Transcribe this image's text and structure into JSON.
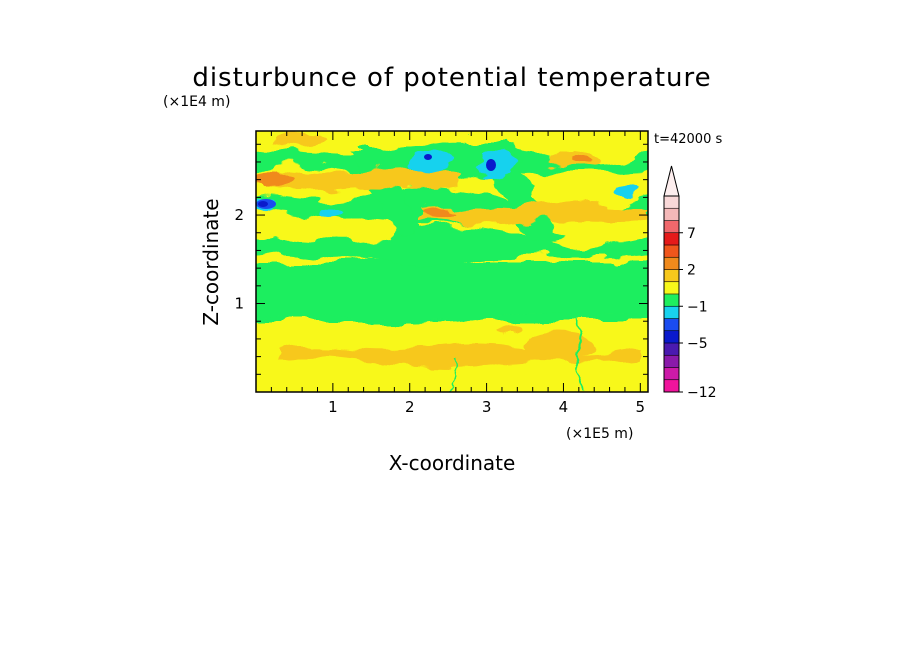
{
  "chart_data": {
    "type": "heatmap",
    "title": "disturbunce of potential temperature",
    "xlabel": "X-coordinate",
    "ylabel": "Z-coordinate",
    "x_unit": "(×1E5 m)",
    "y_unit": "(×1E4 m)",
    "time_label": "t=42000 s",
    "xlim": [
      0,
      5.1
    ],
    "ylim": [
      0,
      2.95
    ],
    "x_ticks": [
      "1",
      "2",
      "3",
      "4",
      "5"
    ],
    "x_tick_values": [
      1,
      2,
      3,
      4,
      5
    ],
    "y_ticks": [
      "1",
      "2"
    ],
    "y_tick_values": [
      1,
      2
    ],
    "grid": false,
    "colorbar": {
      "extend": "max",
      "labels": [
        "7",
        "2",
        "−1",
        "−5",
        "−12"
      ],
      "label_levels": [
        7,
        2,
        -1,
        -5,
        -12
      ],
      "colors": [
        "#f0149c",
        "#cc1aa8",
        "#8a1aaa",
        "#4a1ab0",
        "#0a1acc",
        "#1a4cf0",
        "#18d2ee",
        "#1fee5e",
        "#f8f81a",
        "#f7c81c",
        "#f08a1c",
        "#f0561c",
        "#e51a1a",
        "#f0686c",
        "#f4b8b8",
        "#f9d8d8"
      ],
      "levels": [
        -12,
        -10,
        -8,
        -6,
        -5,
        -4,
        -2,
        -1,
        0,
        1,
        2,
        4,
        5,
        7,
        9
      ]
    },
    "bands": [
      {
        "z_range": [
          0,
          0.8
        ],
        "dominant": "yellow",
        "values": "0 to 1, patches 1 to 2"
      },
      {
        "z_range": [
          0.8,
          1.5
        ],
        "dominant": "green",
        "values": "-1 to 0"
      },
      {
        "z_range": [
          1.5,
          2.95
        ],
        "dominant": "mixed",
        "values": "-6 to 2, wavy layered structure"
      }
    ],
    "extremes": [
      {
        "x": 0.1,
        "z": 2.15,
        "color": "blue",
        "value": -5
      },
      {
        "x": 2.25,
        "z": 2.7,
        "color": "blue",
        "value": -5
      },
      {
        "x": 3.05,
        "z": 2.65,
        "color": "blue",
        "value": -5
      }
    ]
  }
}
